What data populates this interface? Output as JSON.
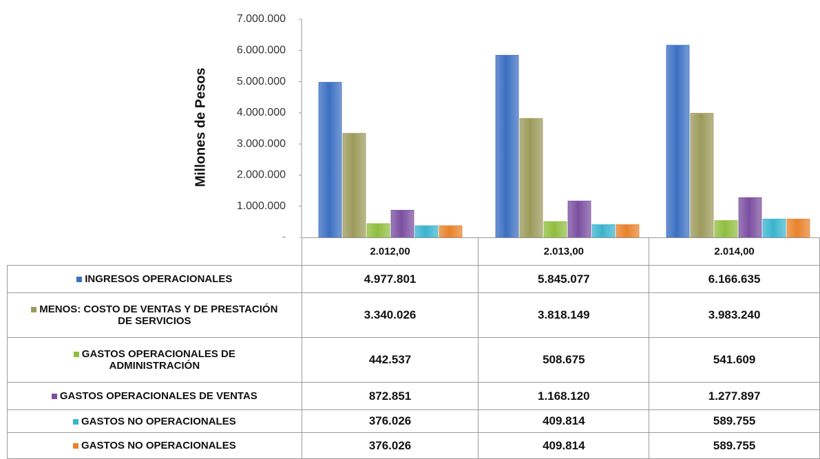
{
  "chart_data": {
    "type": "bar",
    "y_label": "Millones de Pesos",
    "categories": [
      "2.012,00",
      "2.013,00",
      "2.014,00"
    ],
    "ylim": [
      0,
      7000000
    ],
    "yticks": [
      {
        "value": 0,
        "label": "-"
      },
      {
        "value": 1000000,
        "label": "1.000.000"
      },
      {
        "value": 2000000,
        "label": "2.000.000"
      },
      {
        "value": 3000000,
        "label": "3.000.000"
      },
      {
        "value": 4000000,
        "label": "4.000.000"
      },
      {
        "value": 5000000,
        "label": "5.000.000"
      },
      {
        "value": 6000000,
        "label": "6.000.000"
      },
      {
        "value": 7000000,
        "label": "7.000.000"
      }
    ],
    "series": [
      {
        "name": "INGRESOS OPERACIONALES",
        "color": "#3b6fc2",
        "values": [
          4977801,
          5845077,
          6166635
        ],
        "value_labels": [
          "4.977.801",
          "5.845.077",
          "6.166.635"
        ]
      },
      {
        "name": "MENOS: COSTO DE VENTAS Y DE PRESTACIÓN DE SERVICIOS",
        "color": "#9c9a5a",
        "values": [
          3340026,
          3818149,
          3983240
        ],
        "value_labels": [
          "3.340.026",
          "3.818.149",
          "3.983.240"
        ]
      },
      {
        "name": "GASTOS OPERACIONALES DE ADMINISTRACIÓN",
        "color": "#8fbe3e",
        "values": [
          442537,
          508675,
          541609
        ],
        "value_labels": [
          "442.537",
          "508.675",
          "541.609"
        ]
      },
      {
        "name": "GASTOS OPERACIONALES DE VENTAS",
        "color": "#7b4fa0",
        "values": [
          872851,
          1168120,
          1277897
        ],
        "value_labels": [
          "872.851",
          "1.168.120",
          "1.277.897"
        ]
      },
      {
        "name": "GASTOS NO OPERACIONALES",
        "color": "#3ab4ce",
        "values": [
          376026,
          409814,
          589755
        ],
        "value_labels": [
          "376.026",
          "409.814",
          "589.755"
        ]
      },
      {
        "name": "GASTOS NO OPERACIONALES",
        "color": "#e8822a",
        "values": [
          376026,
          409814,
          589755
        ],
        "value_labels": [
          "376.026",
          "409.814",
          "589.755"
        ]
      }
    ]
  }
}
